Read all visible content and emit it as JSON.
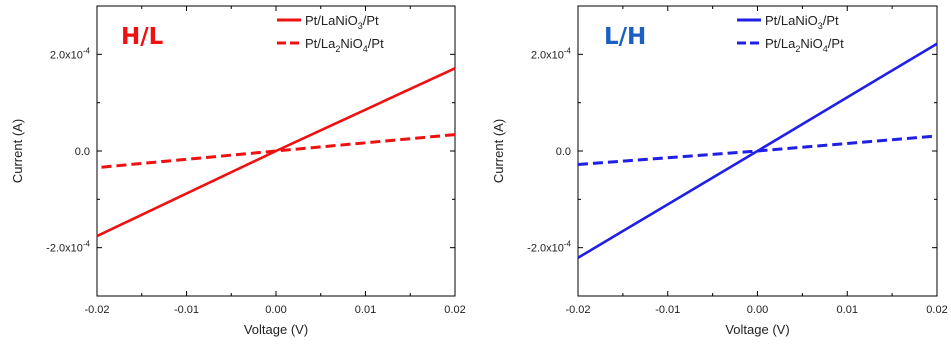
{
  "chart_data": [
    {
      "type": "line",
      "tag": "H/L",
      "tag_color": "#ee1111",
      "series_color": "#ee1111",
      "xlabel": "Voltage (V)",
      "ylabel": "Current (A)",
      "xlim": [
        -0.02,
        0.02
      ],
      "ylim": [
        -0.0003,
        0.0003
      ],
      "x_ticks": [
        -0.02,
        -0.01,
        0.0,
        0.01,
        0.02
      ],
      "x_tick_labels": [
        "-0.02",
        "-0.01",
        "0.00",
        "0.01",
        "0.02"
      ],
      "y_ticks": [
        -0.0002,
        0.0,
        0.0002
      ],
      "y_tick_labels": [
        {
          "base": "-2.0x10",
          "exp": "-4"
        },
        {
          "base": "0.0",
          "exp": ""
        },
        {
          "base": "2.0x10",
          "exp": "-4"
        }
      ],
      "legend_position": "top-right",
      "grid": false,
      "series": [
        {
          "name_parts": [
            {
              "t": "Pt/LaNiO"
            },
            {
              "t": "3",
              "sub": true
            },
            {
              "t": "/Pt"
            }
          ],
          "style": "solid",
          "x": [
            -0.02,
            0.0,
            0.02
          ],
          "y": [
            -0.000176,
            0.0,
            0.000171
          ]
        },
        {
          "name_parts": [
            {
              "t": "Pt/La"
            },
            {
              "t": "2",
              "sub": true
            },
            {
              "t": "NiO"
            },
            {
              "t": "4",
              "sub": true
            },
            {
              "t": "/Pt"
            }
          ],
          "style": "dashed",
          "x": [
            -0.0195,
            0.0,
            0.02
          ],
          "y": [
            -3.35e-05,
            0.0,
            3.4e-05
          ]
        }
      ]
    },
    {
      "type": "line",
      "tag": "L/H",
      "tag_color": "#1a5fc4",
      "series_color": "#1f1fe6",
      "xlabel": "Voltage (V)",
      "ylabel": "Current (A)",
      "xlim": [
        -0.02,
        0.02
      ],
      "ylim": [
        -0.0003,
        0.0003
      ],
      "x_ticks": [
        -0.02,
        -0.01,
        0.0,
        0.01,
        0.02
      ],
      "x_tick_labels": [
        "-0.02",
        "-0.01",
        "0.00",
        "0.01",
        "0.02"
      ],
      "y_ticks": [
        -0.0002,
        0.0,
        0.0002
      ],
      "y_tick_labels": [
        {
          "base": "-2.0x10",
          "exp": "-4"
        },
        {
          "base": "0.0",
          "exp": ""
        },
        {
          "base": "2.0x10",
          "exp": "-4"
        }
      ],
      "legend_position": "top-right",
      "grid": false,
      "series": [
        {
          "name_parts": [
            {
              "t": "Pt/LaNiO"
            },
            {
              "t": "3",
              "sub": true
            },
            {
              "t": "/Pt"
            }
          ],
          "style": "solid",
          "x": [
            -0.02,
            0.0,
            0.02
          ],
          "y": [
            -0.000221,
            0.0,
            0.000222
          ]
        },
        {
          "name_parts": [
            {
              "t": "Pt/La"
            },
            {
              "t": "2",
              "sub": true
            },
            {
              "t": "NiO"
            },
            {
              "t": "4",
              "sub": true
            },
            {
              "t": "/Pt"
            }
          ],
          "style": "dashed",
          "x": [
            -0.02,
            0.0,
            0.02
          ],
          "y": [
            -2.8e-05,
            0.0,
            3.1e-05
          ]
        }
      ]
    }
  ]
}
